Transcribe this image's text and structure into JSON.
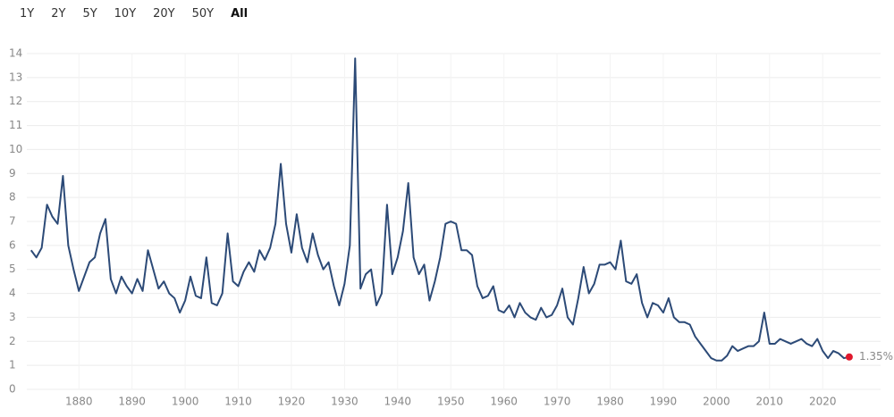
{
  "controls": {
    "ranges": [
      "1Y",
      "2Y",
      "5Y",
      "10Y",
      "20Y",
      "50Y",
      "All"
    ],
    "selected": "All"
  },
  "chart_data": {
    "type": "line",
    "x": [
      1871,
      1872,
      1873,
      1874,
      1875,
      1876,
      1877,
      1878,
      1879,
      1880,
      1881,
      1882,
      1883,
      1884,
      1885,
      1886,
      1887,
      1888,
      1889,
      1890,
      1891,
      1892,
      1893,
      1894,
      1895,
      1896,
      1897,
      1898,
      1899,
      1900,
      1901,
      1902,
      1903,
      1904,
      1905,
      1906,
      1907,
      1908,
      1909,
      1910,
      1911,
      1912,
      1913,
      1914,
      1915,
      1916,
      1917,
      1918,
      1919,
      1920,
      1921,
      1922,
      1923,
      1924,
      1925,
      1926,
      1927,
      1928,
      1929,
      1930,
      1931,
      1932,
      1933,
      1934,
      1935,
      1936,
      1937,
      1938,
      1939,
      1940,
      1941,
      1942,
      1943,
      1944,
      1945,
      1946,
      1947,
      1948,
      1949,
      1950,
      1951,
      1952,
      1953,
      1954,
      1955,
      1956,
      1957,
      1958,
      1959,
      1960,
      1961,
      1962,
      1963,
      1964,
      1965,
      1966,
      1967,
      1968,
      1969,
      1970,
      1971,
      1972,
      1973,
      1974,
      1975,
      1976,
      1977,
      1978,
      1979,
      1980,
      1981,
      1982,
      1983,
      1984,
      1985,
      1986,
      1987,
      1988,
      1989,
      1990,
      1991,
      1992,
      1993,
      1994,
      1995,
      1996,
      1997,
      1998,
      1999,
      2000,
      2001,
      2002,
      2003,
      2004,
      2005,
      2006,
      2007,
      2008,
      2009,
      2010,
      2011,
      2012,
      2013,
      2014,
      2015,
      2016,
      2017,
      2018,
      2019,
      2020,
      2021,
      2022,
      2023,
      2024,
      2025
    ],
    "series": [
      {
        "color": "#2c4a77",
        "values": [
          5.8,
          5.5,
          5.9,
          7.7,
          7.2,
          6.9,
          8.9,
          6.0,
          5.0,
          4.1,
          4.7,
          5.3,
          5.5,
          6.5,
          7.1,
          4.6,
          4.0,
          4.7,
          4.3,
          4.0,
          4.6,
          4.1,
          5.8,
          5.0,
          4.2,
          4.5,
          4.0,
          3.8,
          3.2,
          3.7,
          4.7,
          3.9,
          3.8,
          5.5,
          3.6,
          3.5,
          4.0,
          6.5,
          4.5,
          4.3,
          4.9,
          5.3,
          4.9,
          5.8,
          5.4,
          5.9,
          6.9,
          9.4,
          6.9,
          5.7,
          7.3,
          5.9,
          5.3,
          6.5,
          5.6,
          5.0,
          5.3,
          4.3,
          3.5,
          4.4,
          6.0,
          13.8,
          4.2,
          4.8,
          5.0,
          3.5,
          4.0,
          7.7,
          4.8,
          5.5,
          6.6,
          8.6,
          5.5,
          4.8,
          5.2,
          3.7,
          4.5,
          5.5,
          6.9,
          7.0,
          6.9,
          5.8,
          5.8,
          5.6,
          4.3,
          3.8,
          3.9,
          4.3,
          3.3,
          3.2,
          3.5,
          3.0,
          3.6,
          3.2,
          3.0,
          2.9,
          3.4,
          3.0,
          3.1,
          3.5,
          4.2,
          3.0,
          2.7,
          3.8,
          5.1,
          4.0,
          4.4,
          5.2,
          5.2,
          5.3,
          5.0,
          6.2,
          4.5,
          4.4,
          4.8,
          3.6,
          3.0,
          3.6,
          3.5,
          3.2,
          3.8,
          3.0,
          2.8,
          2.8,
          2.7,
          2.2,
          1.9,
          1.6,
          1.3,
          1.2,
          1.2,
          1.4,
          1.8,
          1.6,
          1.7,
          1.8,
          1.8,
          2.0,
          3.2,
          1.9,
          1.9,
          2.1,
          2.0,
          1.9,
          2.0,
          2.1,
          1.9,
          1.8,
          2.1,
          1.6,
          1.3,
          1.6,
          1.5,
          1.3,
          1.35
        ]
      }
    ],
    "end_label": "1.35%",
    "end_color": "#e0182d",
    "xlim": [
      1870.2,
      2030.9
    ],
    "xticks": [
      1880,
      1890,
      1900,
      1910,
      1920,
      1930,
      1940,
      1950,
      1960,
      1970,
      1980,
      1990,
      2000,
      2010,
      2020
    ],
    "ylim": [
      0,
      14
    ],
    "yticks": [
      0,
      1,
      2,
      3,
      4,
      5,
      6,
      7,
      8,
      9,
      10,
      11,
      12,
      13,
      14
    ],
    "grid": true
  }
}
